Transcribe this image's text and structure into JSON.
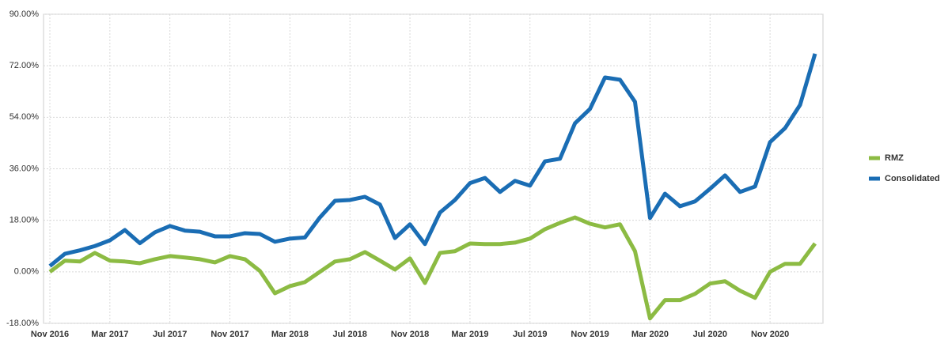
{
  "chart_data": {
    "type": "line",
    "categories": [
      "Nov 2016",
      null,
      null,
      null,
      "Mar 2017",
      null,
      null,
      null,
      "Jul 2017",
      null,
      null,
      null,
      "Nov 2017",
      null,
      null,
      null,
      "Mar 2018",
      null,
      null,
      null,
      "Jul 2018",
      null,
      null,
      null,
      "Nov 2018",
      null,
      null,
      null,
      "Mar 2019",
      null,
      null,
      null,
      "Jul 2019",
      null,
      null,
      null,
      "Nov 2019",
      null,
      null,
      null,
      "Mar 2020",
      null,
      null,
      null,
      "Jul 2020",
      null,
      null,
      null,
      "Nov 2020",
      null,
      null,
      null
    ],
    "series": [
      {
        "name": "RMZ",
        "color": "#8cbb43",
        "values": [
          0,
          3.9,
          3.6,
          6.6,
          3.9,
          3.6,
          3,
          4.4,
          5.5,
          5,
          4.4,
          3.3,
          5.5,
          4.4,
          0.3,
          -7.5,
          -5,
          -3.6,
          0,
          3.6,
          4.4,
          6.9,
          3.9,
          0.8,
          4.7,
          -3.9,
          6.6,
          7.2,
          9.9,
          9.7,
          9.7,
          10.2,
          11.6,
          14.9,
          17.1,
          19,
          16.8,
          15.5,
          16.6,
          7.2,
          -16.3,
          -9.9,
          -9.9,
          -7.7,
          -4.1,
          -3.3,
          -6.6,
          -9.1,
          0,
          2.8,
          2.8,
          9.9
        ]
      },
      {
        "name": "Consolidated",
        "color": "#1a6db4",
        "values": [
          2,
          6.3,
          7.5,
          9,
          11,
          14.6,
          10,
          13.8,
          16,
          14.4,
          14,
          12.4,
          12.4,
          13.5,
          13.2,
          10.5,
          11.6,
          12,
          19,
          24.8,
          25.1,
          26.2,
          23.5,
          11.8,
          16.6,
          9.7,
          20.7,
          25.1,
          31,
          32.8,
          27.9,
          31.8,
          30.1,
          38.6,
          39.5,
          51.9,
          56.9,
          67.9,
          67.1,
          59.4,
          18.8,
          27.3,
          22.9,
          24.6,
          29,
          33.7,
          27.9,
          29.8,
          45.3,
          50.2,
          58.3,
          76.2
        ]
      }
    ],
    "ylim": [
      -18,
      90
    ],
    "yticks": [
      {
        "value": -18,
        "label": "-18.00%"
      },
      {
        "value": 0,
        "label": "0.00%"
      },
      {
        "value": 18,
        "label": "18.00%"
      },
      {
        "value": 36,
        "label": "36.00%"
      },
      {
        "value": 54,
        "label": "54.00%"
      },
      {
        "value": 72,
        "label": "72.00%"
      },
      {
        "value": 90,
        "label": "90.00%"
      }
    ],
    "grid": true,
    "legend": "right"
  }
}
